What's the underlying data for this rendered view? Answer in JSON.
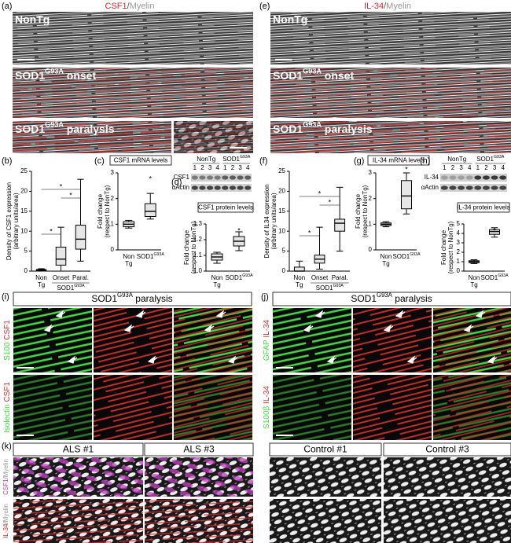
{
  "panels": {
    "a": {
      "letter": "(a)",
      "title": [
        "CSF1",
        "/",
        "Myelin"
      ],
      "rows": [
        "NonTg",
        {
          "text": "SOD1",
          "sup": "G93A",
          "after": " onset"
        },
        {
          "text": "SOD1",
          "sup": "G93A",
          "after": " paralysis"
        }
      ]
    },
    "e": {
      "letter": "(e)",
      "title": [
        "IL-34",
        "/",
        "Myelin"
      ],
      "rows": [
        "NonTg",
        {
          "text": "SOD1",
          "sup": "G93A",
          "after": " onset"
        },
        {
          "text": "SOD1",
          "sup": "G93A",
          "after": " paralysis"
        }
      ]
    },
    "i": {
      "letter": "(i)",
      "header": {
        "text": "SOD1",
        "sup": "G93A",
        "after": " paralysis"
      },
      "side": [
        [
          "S100",
          "/",
          "CSF1"
        ],
        [
          "Isolectin",
          "/",
          "CSF1"
        ]
      ]
    },
    "j": {
      "letter": "(j)",
      "header": {
        "text": "SOD1",
        "sup": "G93A",
        "after": " paralysis"
      },
      "side": [
        [
          "GFAP",
          "/",
          "IL-34"
        ],
        [
          "S100β",
          "/",
          "IL-34"
        ]
      ]
    },
    "k": {
      "letter": "(k)",
      "columns": [
        "ALS #1",
        "ALS #3",
        "Control #1",
        "Control #3"
      ],
      "side": [
        [
          "CSF1",
          "/",
          "Myelin"
        ],
        [
          "IL-34",
          "/",
          "Myelin"
        ]
      ]
    }
  },
  "chart_data": [
    {
      "type": "box",
      "panel": "(b)",
      "ylabel": [
        "Density of CSF1 expression",
        "(arbitrary units/area)"
      ],
      "ylim": [
        0,
        25
      ],
      "yticks": [
        0,
        5,
        10,
        15,
        20,
        25
      ],
      "color": "#e6e6e6",
      "categories": [
        [
          "Non",
          "Tg"
        ],
        [
          "Onset"
        ],
        [
          "Paral."
        ]
      ],
      "group_label": {
        "text": "SOD1",
        "sup": "G93A"
      },
      "boxes": [
        {
          "min": 0,
          "q1": 0,
          "median": 0.2,
          "q3": 0.4,
          "max": 0.6
        },
        {
          "min": 0,
          "q1": 1.5,
          "median": 3,
          "q3": 6,
          "max": 11
        },
        {
          "min": 2.5,
          "q1": 5.5,
          "median": 8,
          "q3": 11.5,
          "max": 23
        }
      ],
      "annotations": [
        "*",
        "*",
        "*"
      ]
    },
    {
      "type": "box",
      "panel": "(c)",
      "title": "CSF1 mRNA levels",
      "ylabel": [
        "Fold change",
        "(respect to NonTg)"
      ],
      "ylim": [
        0,
        3
      ],
      "yticks": [
        0,
        1,
        2,
        3
      ],
      "color": "#e6e6e6",
      "categories": [
        [
          "Non",
          "Tg"
        ],
        {
          "text": "SOD1",
          "sup": "G93A"
        }
      ],
      "boxes": [
        {
          "min": 0.85,
          "q1": 0.9,
          "median": 1.0,
          "q3": 1.1,
          "max": 1.15
        },
        {
          "min": 1.2,
          "q1": 1.3,
          "median": 1.5,
          "q3": 1.8,
          "max": 2.2
        }
      ],
      "annotations": [
        "*"
      ]
    },
    {
      "type": "box",
      "panel": "(d)",
      "title": "CSF1 protein levels",
      "ylabel": [
        "Fold change",
        "(respect to NonTg)"
      ],
      "blot": {
        "groups": [
          "NonTg",
          {
            "text": "SOD1",
            "sup": "G93A"
          }
        ],
        "lanes": [
          "1",
          "2",
          "3",
          "4",
          "1",
          "2",
          "3",
          "4"
        ],
        "rows": [
          "CSF1",
          "αActin"
        ]
      },
      "ylim": [
        1,
        1.3
      ],
      "yticks": [
        {
          "value": 1,
          "label": "1.0"
        },
        1.1,
        1.2,
        1.3
      ],
      "color": "#e6e6e6",
      "categories": [
        [
          "Non",
          "Tg"
        ],
        {
          "text": "SOD1",
          "sup": "G93A"
        }
      ],
      "boxes": [
        {
          "min": 1.05,
          "q1": 1.07,
          "median": 1.09,
          "q3": 1.11,
          "max": 1.12
        },
        {
          "min": 1.13,
          "q1": 1.16,
          "median": 1.19,
          "q3": 1.22,
          "max": 1.25
        }
      ],
      "annotations": [
        "*"
      ]
    },
    {
      "type": "box",
      "panel": "(f)",
      "ylabel": [
        "Density of IL34 expression",
        "(arbitrary units/area)"
      ],
      "ylim": [
        0,
        25
      ],
      "yticks": [
        0,
        5,
        10,
        15,
        20,
        25
      ],
      "color": "#e6e6e6",
      "categories": [
        [
          "Non",
          "Tg"
        ],
        [
          "Onset"
        ],
        [
          "Paral."
        ]
      ],
      "group_label": {
        "text": "SOD1",
        "sup": "G93A"
      },
      "boxes": [
        {
          "min": 0,
          "q1": 0,
          "median": 0,
          "q3": 1,
          "max": 2.5
        },
        {
          "min": 0.5,
          "q1": 2,
          "median": 3,
          "q3": 4,
          "max": 11
        },
        {
          "min": 5,
          "q1": 10,
          "median": 12,
          "q3": 13,
          "max": 21
        }
      ],
      "annotations": [
        "*",
        "*",
        "*"
      ]
    },
    {
      "type": "box",
      "panel": "(g)",
      "title": "IL-34 mRNA levels",
      "ylabel": [
        "Fold change",
        "(respect to NonTg)"
      ],
      "ylim": [
        0,
        3
      ],
      "yticks": [
        0,
        1,
        2,
        3
      ],
      "color": "#e6e6e6",
      "categories": [
        [
          "Non",
          "Tg"
        ],
        {
          "text": "SOD1",
          "sup": "G93A"
        }
      ],
      "boxes": [
        {
          "min": 0.9,
          "q1": 0.95,
          "median": 1.0,
          "q3": 1.05,
          "max": 1.1
        },
        {
          "min": 1.4,
          "q1": 1.6,
          "median": 2.1,
          "q3": 2.7,
          "max": 3.0
        }
      ],
      "annotations": [
        "*"
      ]
    },
    {
      "type": "box",
      "panel": "(h)",
      "title": "IL-34 protein levels",
      "ylabel": [
        "Fold change",
        "(respect to NonTg)"
      ],
      "blot": {
        "groups": [
          "NonTg",
          {
            "text": "SOD1",
            "sup": "G93A"
          }
        ],
        "lanes": [
          "1",
          "2",
          "3",
          "4",
          "1",
          "2",
          "3",
          "4"
        ],
        "rows": [
          "IL-34",
          "αActin"
        ]
      },
      "ylim": [
        0,
        5
      ],
      "yticks": [
        0,
        1,
        2,
        3,
        4,
        5
      ],
      "color": "#e6e6e6",
      "categories": [
        [
          "Non",
          "Tg"
        ],
        {
          "text": "SOD1",
          "sup": "G93A"
        }
      ],
      "boxes": [
        {
          "min": 0.8,
          "q1": 0.9,
          "median": 1.0,
          "q3": 1.1,
          "max": 1.2
        },
        {
          "min": 3.6,
          "q1": 3.9,
          "median": 4.2,
          "q3": 4.4,
          "max": 4.6
        }
      ],
      "annotations": [
        "*"
      ]
    }
  ]
}
